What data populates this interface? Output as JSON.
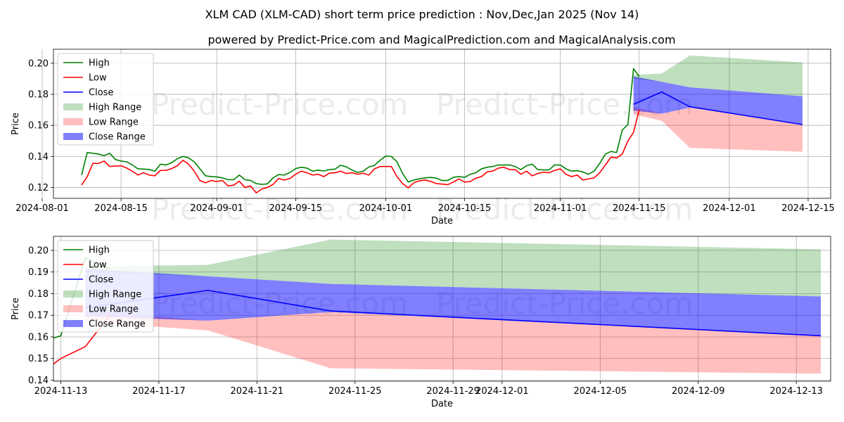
{
  "chart_data": {
    "type": "line",
    "title": "XLM CAD (XLM-CAD) short term price prediction : Nov,Dec,Jan 2025 (Nov 14)",
    "subtitle": "powered by Predict-Price.com and MagicalPrediction.com and MagicalAnalysis.com",
    "watermark": "Predict-Price.com",
    "colors": {
      "high": "#008000",
      "low": "#ff0000",
      "close": "#0000ff",
      "high_range": "#008000",
      "low_range": "#ff0000",
      "close_range": "#0000ff"
    },
    "legend": [
      "High",
      "Low",
      "Close",
      "High Range",
      "Low Range",
      "Close Range"
    ],
    "legend_position": "top-left",
    "grid": true,
    "history": {
      "start_day": 0,
      "high": [
        0.128,
        0.1425,
        0.142,
        0.1415,
        0.1405,
        0.142,
        0.138,
        0.137,
        0.1365,
        0.1345,
        0.132,
        0.1318,
        0.1316,
        0.1305,
        0.135,
        0.1345,
        0.136,
        0.1385,
        0.14,
        0.139,
        0.1365,
        0.132,
        0.1275,
        0.127,
        0.1268,
        0.1262,
        0.125,
        0.125,
        0.128,
        0.125,
        0.1245,
        0.1225,
        0.122,
        0.1223,
        0.1262,
        0.1283,
        0.128,
        0.1297,
        0.1322,
        0.133,
        0.1325,
        0.1305,
        0.1312,
        0.1306,
        0.1315,
        0.1318,
        0.1343,
        0.1333,
        0.1312,
        0.1297,
        0.1305,
        0.1332,
        0.1342,
        0.1375,
        0.1402,
        0.14,
        0.1365,
        0.129,
        0.1235,
        0.1248,
        0.1256,
        0.1262,
        0.1265,
        0.126,
        0.1245,
        0.1245,
        0.1265,
        0.127,
        0.1265,
        0.1285,
        0.1295,
        0.132,
        0.133,
        0.1335,
        0.1345,
        0.1345,
        0.1345,
        0.1335,
        0.1315,
        0.134,
        0.135,
        0.1315,
        0.1313,
        0.1313,
        0.1345,
        0.1345,
        0.132,
        0.1305,
        0.1308,
        0.13,
        0.1285,
        0.1305,
        0.1355,
        0.1415,
        0.1432,
        0.1425,
        0.157,
        0.1605,
        0.1965,
        0.1915
      ],
      "low": [
        0.1215,
        0.127,
        0.1355,
        0.1355,
        0.137,
        0.1335,
        0.1338,
        0.134,
        0.1325,
        0.1305,
        0.128,
        0.1295,
        0.128,
        0.1275,
        0.131,
        0.131,
        0.1322,
        0.134,
        0.1375,
        0.135,
        0.1305,
        0.1245,
        0.123,
        0.1245,
        0.1238,
        0.1245,
        0.121,
        0.1215,
        0.124,
        0.12,
        0.121,
        0.1165,
        0.119,
        0.12,
        0.122,
        0.1258,
        0.1248,
        0.1258,
        0.1285,
        0.1305,
        0.1295,
        0.128,
        0.1285,
        0.127,
        0.1292,
        0.1295,
        0.1305,
        0.129,
        0.1295,
        0.1285,
        0.1292,
        0.128,
        0.132,
        0.1335,
        0.1335,
        0.1335,
        0.127,
        0.1225,
        0.1198,
        0.123,
        0.1243,
        0.1248,
        0.1238,
        0.1225,
        0.1222,
        0.1218,
        0.1235,
        0.1255,
        0.1235,
        0.1238,
        0.126,
        0.127,
        0.13,
        0.1305,
        0.1325,
        0.133,
        0.1315,
        0.1315,
        0.1285,
        0.1305,
        0.1275,
        0.129,
        0.1298,
        0.1295,
        0.131,
        0.132,
        0.1285,
        0.127,
        0.128,
        0.1248,
        0.1255,
        0.1262,
        0.1295,
        0.1345,
        0.1395,
        0.139,
        0.1415,
        0.15,
        0.1555,
        0.17
      ]
    },
    "forecast": {
      "dates": [
        "2024-11-14",
        "2024-11-19",
        "2024-11-24",
        "2024-12-14"
      ],
      "close": [
        0.1735,
        0.1815,
        0.172,
        0.1605
      ],
      "high_range": {
        "top": [
          0.1925,
          0.1933,
          0.205,
          0.2005
        ],
        "bottom": [
          0.19,
          0.188,
          0.1845,
          0.1787
        ]
      },
      "low_range": {
        "top": [
          0.172,
          0.1675,
          0.1715,
          0.1605
        ],
        "bottom": [
          0.167,
          0.163,
          0.1455,
          0.143
        ]
      },
      "close_range": {
        "top": [
          0.1915,
          0.188,
          0.1845,
          0.1787
        ],
        "bottom": [
          0.1695,
          0.1675,
          0.1715,
          0.1605
        ]
      }
    },
    "top_panel": {
      "xlabel": "Date",
      "ylabel": "Price",
      "ylim": [
        0.113,
        0.209
      ],
      "y_ticks": [
        0.12,
        0.14,
        0.16,
        0.18,
        0.2
      ],
      "y_tick_labels": [
        "0.12",
        "0.14",
        "0.16",
        "0.18",
        "0.20"
      ],
      "x_ticks": [
        "2024-08-01",
        "2024-08-15",
        "2024-09-01",
        "2024-09-15",
        "2024-10-01",
        "2024-10-15",
        "2024-11-01",
        "2024-11-15",
        "2024-12-01",
        "2024-12-15"
      ],
      "x_tick_labels": [
        "2024-08-01",
        "2024-08-15",
        "2024-09-01",
        "2024-09-15",
        "2024-10-01",
        "2024-10-15",
        "2024-11-01",
        "2024-11-15",
        "2024-12-01",
        "2024-12-15"
      ]
    },
    "bottom_panel": {
      "xlabel": "Date",
      "ylabel": "Price",
      "ylim": [
        0.1395,
        0.2065
      ],
      "y_ticks": [
        0.14,
        0.15,
        0.16,
        0.17,
        0.18,
        0.19,
        0.2
      ],
      "y_tick_labels": [
        "0.14",
        "0.15",
        "0.16",
        "0.17",
        "0.18",
        "0.19",
        "0.20"
      ],
      "x_ticks": [
        "2024-11-13",
        "2024-11-17",
        "2024-11-21",
        "2024-11-25",
        "2024-11-29",
        "2024-12-01",
        "2024-12-05",
        "2024-12-09",
        "2024-12-13"
      ],
      "x_tick_labels": [
        "2024-11-13",
        "2024-11-17",
        "2024-11-21",
        "2024-11-25",
        "2024-11-29",
        "2024-12-01",
        "2024-12-05",
        "2024-12-09",
        "2024-12-13"
      ]
    }
  }
}
